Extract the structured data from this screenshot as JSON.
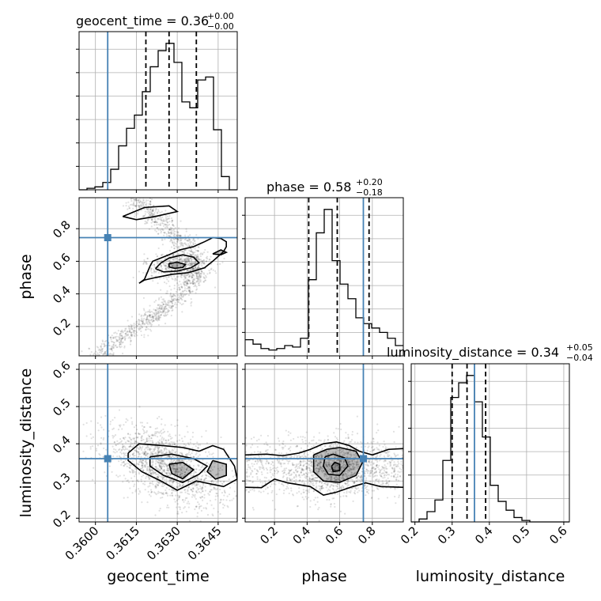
{
  "chart_data": {
    "type": "corner",
    "parameters": [
      "geocent_time",
      "phase",
      "luminosity_distance"
    ],
    "truths": {
      "geocent_time": 0.36045,
      "phase": 0.745,
      "luminosity_distance": 0.36
    },
    "ranges": {
      "geocent_time": [
        0.3594,
        0.3652
      ],
      "phase": [
        0.02,
        0.99
      ],
      "luminosity_distance": [
        0.19,
        0.615
      ]
    },
    "titles": {
      "geocent_time": {
        "label": "geocent_time = 0.36",
        "plus": "+0.00",
        "minus": "−0.00"
      },
      "phase": {
        "label": "phase = 0.58",
        "plus": "+0.20",
        "minus": "−0.18"
      },
      "luminosity_distance": {
        "label": "luminosity_distance = 0.34",
        "plus": "+0.05",
        "minus": "−0.04"
      }
    },
    "xlabels": {
      "geocent_time": "geocent_time",
      "phase": "phase",
      "luminosity_distance": "luminosity_distance"
    },
    "ylabels": {
      "phase": "phase",
      "luminosity_distance": "luminosity_distance"
    },
    "xticks": {
      "geocent_time": {
        "values": [
          0.36,
          0.3615,
          0.363,
          0.3645
        ],
        "labels": [
          "0.3600",
          "0.3615",
          "0.3630",
          "0.3645"
        ]
      },
      "phase": {
        "values": [
          0.2,
          0.4,
          0.6,
          0.8
        ],
        "labels": [
          "0.2",
          "0.4",
          "0.6",
          "0.8"
        ]
      },
      "luminosity_distance": {
        "values": [
          0.2,
          0.3,
          0.4,
          0.5,
          0.6
        ],
        "labels": [
          "0.2",
          "0.3",
          "0.4",
          "0.5",
          "0.6"
        ]
      }
    },
    "yticks": {
      "phase": {
        "values": [
          0.2,
          0.4,
          0.6,
          0.8
        ],
        "labels": [
          "0.2",
          "0.4",
          "0.6",
          "0.8"
        ]
      },
      "luminosity_distance": {
        "values": [
          0.2,
          0.3,
          0.4,
          0.5,
          0.6
        ],
        "labels": [
          "0.2",
          "0.3",
          "0.4",
          "0.5",
          "0.6"
        ]
      }
    },
    "histograms": {
      "geocent_time": {
        "bin_edges": [
          0.3594,
          0.35969,
          0.35998,
          0.36027,
          0.36056,
          0.36085,
          0.36114,
          0.36143,
          0.36172,
          0.36201,
          0.3623,
          0.36259,
          0.36288,
          0.36317,
          0.36346,
          0.36375,
          0.36404,
          0.36433,
          0.36462,
          0.36491,
          0.3652
        ],
        "counts": [
          0,
          0.01,
          0.02,
          0.05,
          0.14,
          0.3,
          0.42,
          0.51,
          0.67,
          0.84,
          0.95,
          1.0,
          0.87,
          0.6,
          0.56,
          0.75,
          0.77,
          0.41,
          0.09,
          0
        ],
        "quantiles": [
          0.36185,
          0.3627,
          0.3637
        ]
      },
      "phase": {
        "bin_edges": [
          0.02,
          0.0685,
          0.117,
          0.1655,
          0.214,
          0.2625,
          0.311,
          0.3595,
          0.408,
          0.4565,
          0.505,
          0.5535,
          0.602,
          0.6505,
          0.699,
          0.7475,
          0.796,
          0.8445,
          0.893,
          0.9415,
          0.99
        ],
        "counts": [
          0.11,
          0.08,
          0.05,
          0.04,
          0.05,
          0.07,
          0.06,
          0.12,
          0.52,
          0.84,
          1.0,
          0.65,
          0.49,
          0.39,
          0.26,
          0.22,
          0.19,
          0.16,
          0.12,
          0.07
        ],
        "quantiles": [
          0.41,
          0.585,
          0.78
        ]
      },
      "luminosity_distance": {
        "bin_edges": [
          0.19,
          0.21125,
          0.2325,
          0.25375,
          0.275,
          0.29625,
          0.3175,
          0.33875,
          0.36,
          0.38125,
          0.4025,
          0.42375,
          0.445,
          0.46625,
          0.4875,
          0.50875,
          0.53,
          0.55125,
          0.5725,
          0.59375,
          0.615
        ],
        "counts": [
          0,
          0.02,
          0.07,
          0.15,
          0.42,
          0.85,
          0.95,
          1.0,
          0.82,
          0.58,
          0.25,
          0.14,
          0.08,
          0.03,
          0.01,
          0.0,
          0.0,
          0.0,
          0.0,
          0
        ],
        "quantiles": [
          0.3,
          0.34,
          0.39
        ]
      }
    },
    "contours": {
      "phase_vs_geocent_time": [
        [
          [
            0.3616,
            0.465
          ],
          [
            0.3618,
            0.485
          ],
          [
            0.3622,
            0.5
          ],
          [
            0.3628,
            0.52
          ],
          [
            0.3634,
            0.53
          ],
          [
            0.364,
            0.56
          ],
          [
            0.3643,
            0.6
          ],
          [
            0.3645,
            0.63
          ],
          [
            0.3647,
            0.66
          ],
          [
            0.3648,
            0.69
          ],
          [
            0.3648,
            0.72
          ],
          [
            0.3646,
            0.74
          ],
          [
            0.3643,
            0.745
          ],
          [
            0.364,
            0.72
          ],
          [
            0.3636,
            0.69
          ],
          [
            0.3631,
            0.67
          ],
          [
            0.3627,
            0.64
          ],
          [
            0.3624,
            0.62
          ],
          [
            0.3621,
            0.6
          ],
          [
            0.362,
            0.57
          ],
          [
            0.3619,
            0.53
          ],
          [
            0.3618,
            0.49
          ],
          [
            0.3616,
            0.465
          ]
        ],
        [
          [
            0.3622,
            0.555
          ],
          [
            0.3625,
            0.535
          ],
          [
            0.363,
            0.54
          ],
          [
            0.3635,
            0.56
          ],
          [
            0.3638,
            0.59
          ],
          [
            0.3636,
            0.625
          ],
          [
            0.3632,
            0.64
          ],
          [
            0.3627,
            0.62
          ],
          [
            0.3624,
            0.59
          ],
          [
            0.3622,
            0.555
          ]
        ],
        [
          [
            0.3627,
            0.565
          ],
          [
            0.3629,
            0.557
          ],
          [
            0.3632,
            0.562
          ],
          [
            0.3633,
            0.58
          ],
          [
            0.363,
            0.595
          ],
          [
            0.3627,
            0.585
          ],
          [
            0.3627,
            0.565
          ]
        ],
        [
          [
            0.361,
            0.875
          ],
          [
            0.3615,
            0.855
          ],
          [
            0.3622,
            0.875
          ],
          [
            0.363,
            0.905
          ],
          [
            0.3627,
            0.94
          ],
          [
            0.3618,
            0.93
          ],
          [
            0.361,
            0.875
          ]
        ],
        [
          [
            0.3643,
            0.645
          ],
          [
            0.3646,
            0.64
          ],
          [
            0.3648,
            0.655
          ],
          [
            0.3646,
            0.67
          ],
          [
            0.3643,
            0.645
          ]
        ]
      ],
      "ld_vs_geocent_time": [
        [
          [
            0.3612,
            0.375
          ],
          [
            0.3616,
            0.4
          ],
          [
            0.3625,
            0.395
          ],
          [
            0.3632,
            0.39
          ],
          [
            0.3638,
            0.38
          ],
          [
            0.3643,
            0.395
          ],
          [
            0.3647,
            0.385
          ],
          [
            0.3651,
            0.34
          ],
          [
            0.3652,
            0.305
          ],
          [
            0.3647,
            0.285
          ],
          [
            0.3637,
            0.3
          ],
          [
            0.363,
            0.275
          ],
          [
            0.3624,
            0.3
          ],
          [
            0.3617,
            0.325
          ],
          [
            0.3612,
            0.355
          ],
          [
            0.3612,
            0.375
          ]
        ],
        [
          [
            0.362,
            0.365
          ],
          [
            0.3628,
            0.372
          ],
          [
            0.3636,
            0.36
          ],
          [
            0.3641,
            0.34
          ],
          [
            0.3638,
            0.318
          ],
          [
            0.3632,
            0.296
          ],
          [
            0.3625,
            0.315
          ],
          [
            0.362,
            0.34
          ],
          [
            0.362,
            0.365
          ]
        ],
        [
          [
            0.3627,
            0.345
          ],
          [
            0.3632,
            0.35
          ],
          [
            0.3636,
            0.33
          ],
          [
            0.3632,
            0.306
          ],
          [
            0.3628,
            0.32
          ],
          [
            0.3627,
            0.345
          ]
        ],
        [
          [
            0.3643,
            0.355
          ],
          [
            0.3648,
            0.345
          ],
          [
            0.3648,
            0.315
          ],
          [
            0.3644,
            0.305
          ],
          [
            0.3641,
            0.325
          ],
          [
            0.3643,
            0.355
          ]
        ]
      ],
      "ld_vs_phase": [
        [
          [
            0.02,
            0.37
          ],
          [
            0.15,
            0.372
          ],
          [
            0.25,
            0.368
          ],
          [
            0.35,
            0.375
          ],
          [
            0.42,
            0.385
          ],
          [
            0.5,
            0.4
          ],
          [
            0.58,
            0.405
          ],
          [
            0.66,
            0.395
          ],
          [
            0.72,
            0.38
          ],
          [
            0.8,
            0.37
          ],
          [
            0.9,
            0.385
          ],
          [
            0.99,
            0.387
          ]
        ],
        [
          [
            0.02,
            0.283
          ],
          [
            0.12,
            0.282
          ],
          [
            0.2,
            0.305
          ],
          [
            0.28,
            0.295
          ],
          [
            0.35,
            0.29
          ],
          [
            0.42,
            0.285
          ],
          [
            0.5,
            0.262
          ],
          [
            0.58,
            0.27
          ],
          [
            0.68,
            0.285
          ],
          [
            0.76,
            0.295
          ],
          [
            0.85,
            0.285
          ],
          [
            0.99,
            0.283
          ]
        ],
        [
          [
            0.44,
            0.37
          ],
          [
            0.52,
            0.385
          ],
          [
            0.6,
            0.39
          ],
          [
            0.7,
            0.38
          ],
          [
            0.74,
            0.35
          ],
          [
            0.7,
            0.315
          ],
          [
            0.6,
            0.296
          ],
          [
            0.5,
            0.3
          ],
          [
            0.44,
            0.325
          ],
          [
            0.44,
            0.37
          ]
        ],
        [
          [
            0.51,
            0.365
          ],
          [
            0.56,
            0.372
          ],
          [
            0.63,
            0.362
          ],
          [
            0.65,
            0.34
          ],
          [
            0.6,
            0.315
          ],
          [
            0.53,
            0.318
          ],
          [
            0.5,
            0.34
          ],
          [
            0.51,
            0.365
          ]
        ],
        [
          [
            0.55,
            0.34
          ],
          [
            0.57,
            0.35
          ],
          [
            0.6,
            0.345
          ],
          [
            0.6,
            0.328
          ],
          [
            0.56,
            0.325
          ],
          [
            0.55,
            0.34
          ]
        ]
      ]
    }
  }
}
